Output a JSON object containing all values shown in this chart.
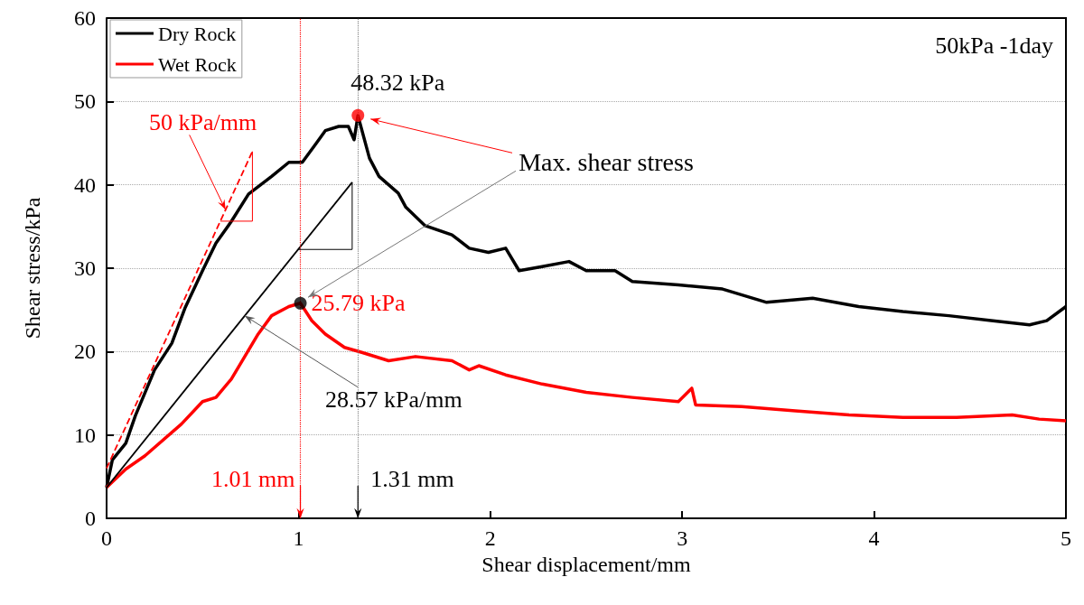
{
  "chart_data": {
    "type": "line",
    "xlabel": "Shear displacement/mm",
    "ylabel": "Shear stress/kPa",
    "xlim": [
      0,
      5
    ],
    "xticks": [
      0,
      1,
      2,
      3,
      4,
      5
    ],
    "ylim": [
      0,
      60
    ],
    "yticks": [
      0,
      10,
      20,
      30,
      40,
      50,
      60
    ],
    "grid": "y",
    "legend": "top left",
    "marker": "none",
    "series": [
      {
        "name": "Dry Rock",
        "color": "#000000",
        "x": [
          0,
          0.03,
          0.1,
          0.15,
          0.25,
          0.34,
          0.41,
          0.5,
          0.57,
          0.65,
          0.74,
          0.86,
          0.95,
          1.02,
          1.09,
          1.14,
          1.21,
          1.26,
          1.29,
          1.31,
          1.37,
          1.42,
          1.52,
          1.56,
          1.66,
          1.8,
          1.89,
          1.99,
          2.08,
          2.15,
          2.27,
          2.41,
          2.5,
          2.65,
          2.74,
          2.98,
          3.21,
          3.44,
          3.68,
          3.92,
          4.15,
          4.39,
          4.62,
          4.81,
          4.9,
          5
        ],
        "values": [
          3.7,
          7,
          9,
          12.3,
          17.8,
          21,
          25.3,
          29.7,
          33,
          35.6,
          38.9,
          41,
          42.7,
          42.7,
          44.9,
          46.5,
          47,
          47,
          45.4,
          48.3,
          43.2,
          41,
          39,
          37.3,
          35.1,
          34,
          32.4,
          31.9,
          32.4,
          29.7,
          30.2,
          30.8,
          29.7,
          29.7,
          28.4,
          28,
          27.5,
          25.9,
          26.4,
          25.4,
          24.8,
          24.3,
          23.7,
          23.2,
          23.7,
          25.4
        ]
      },
      {
        "name": "Wet Rock",
        "color": "#ff0000",
        "x": [
          0,
          0.1,
          0.2,
          0.39,
          0.5,
          0.57,
          0.65,
          0.72,
          0.79,
          0.86,
          0.95,
          1.01,
          1.07,
          1.14,
          1.24,
          1.33,
          1.47,
          1.61,
          1.8,
          1.89,
          1.94,
          2.08,
          2.27,
          2.5,
          2.74,
          2.98,
          3.05,
          3.07,
          3.31,
          3.59,
          3.87,
          4.15,
          4.43,
          4.72,
          4.86,
          5
        ],
        "values": [
          3.7,
          5.9,
          7.5,
          11.3,
          14,
          14.5,
          16.7,
          19.4,
          22.1,
          24.3,
          25.4,
          25.8,
          23.7,
          22.1,
          20.5,
          19.9,
          18.9,
          19.4,
          18.9,
          17.8,
          18.3,
          17.2,
          16.1,
          15.1,
          14.5,
          14,
          15.6,
          13.6,
          13.4,
          12.9,
          12.4,
          12.1,
          12.1,
          12.4,
          11.9,
          11.7
        ]
      },
      {
        "type": "line",
        "color": "#ff0000",
        "line_style": "dashed",
        "x": [
          0,
          0.76
        ],
        "values": [
          6,
          44
        ]
      },
      {
        "type": "line",
        "color": "#000000",
        "line_style": "solid",
        "x": [
          0,
          1.28
        ],
        "values": [
          3.7,
          40.3
        ]
      },
      {
        "type": "scatter",
        "marker": "circle",
        "color": "#ff0000",
        "x": [
          1.31
        ],
        "values": [
          48.32
        ]
      },
      {
        "type": "scatter",
        "marker": "circle",
        "color": "#000000",
        "x": [
          1.01
        ],
        "values": [
          25.79
        ]
      }
    ],
    "ref_lines": [
      {
        "axis": "x",
        "value": 1.01,
        "color": "#ff0000",
        "line_style": "dotted"
      },
      {
        "axis": "x",
        "value": 1.31,
        "color": "#888888",
        "line_style": "dotted"
      }
    ],
    "annotations": [
      {
        "text": "48.32 kPa",
        "x": 1.31,
        "y": 48.32
      },
      {
        "text": "25.79 kPa",
        "x": 1.01,
        "y": 25.79
      },
      {
        "text": "1.01 mm",
        "x": 1.01,
        "y": 0
      },
      {
        "text": "1.31 mm",
        "x": 1.31,
        "y": 0
      },
      {
        "text": "50 kPa/mm",
        "x": 0.62,
        "y": 37
      },
      {
        "text": "28.57 kPa/mm",
        "x": 0.72,
        "y": 24.3
      },
      {
        "text": "Max. shear stress",
        "x": 1.05,
        "y": 26.5
      },
      "50kPa -1day"
    ]
  }
}
